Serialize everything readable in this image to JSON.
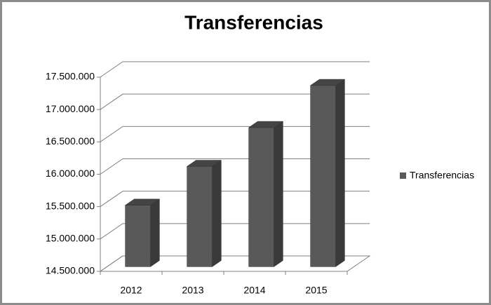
{
  "chart_data": {
    "type": "bar3d",
    "title": "Transferencias",
    "categories": [
      "2012",
      "2013",
      "2014",
      "2015"
    ],
    "series": [
      {
        "name": "Transferencias",
        "color": "#595959",
        "values": [
          15450000,
          16050000,
          16650000,
          17300000
        ]
      }
    ],
    "ylim": [
      14500000,
      17500000
    ],
    "yticks": [
      {
        "value": 14500000,
        "label": "14.500.000"
      },
      {
        "value": 15000000,
        "label": "15.000.000"
      },
      {
        "value": 15500000,
        "label": "15.500.000"
      },
      {
        "value": 16000000,
        "label": "16.000.000"
      },
      {
        "value": 16500000,
        "label": "16.500.000"
      },
      {
        "value": 17000000,
        "label": "17.000.000"
      },
      {
        "value": 17500000,
        "label": "17.500.000"
      }
    ],
    "grid": true,
    "legend": "right"
  }
}
